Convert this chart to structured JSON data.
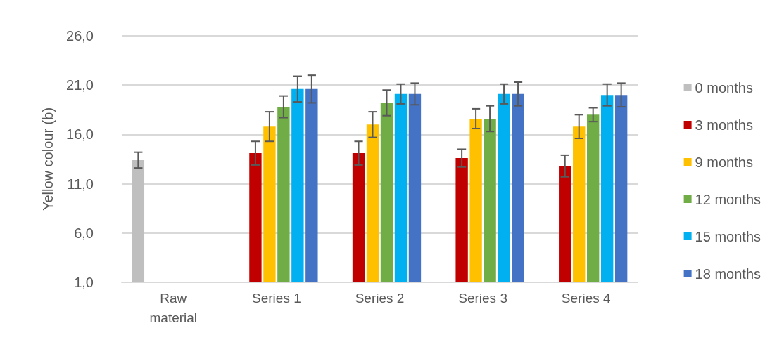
{
  "chart_data": {
    "type": "bar",
    "ylabel": "Yellow colour (b)",
    "categories": [
      "Raw\nmaterial",
      "Series 1",
      "Series 2",
      "Series 3",
      "Series 4"
    ],
    "series": [
      {
        "name": "0 months",
        "color": "#bfbfbf",
        "values": [
          13.4,
          null,
          null,
          null,
          null
        ],
        "errors": [
          0.8,
          null,
          null,
          null,
          null
        ]
      },
      {
        "name": "3 months",
        "color": "#c00000",
        "values": [
          null,
          14.1,
          14.1,
          13.6,
          12.8
        ],
        "errors": [
          null,
          1.2,
          1.2,
          0.9,
          1.1
        ]
      },
      {
        "name": "9 months",
        "color": "#ffc000",
        "values": [
          null,
          16.8,
          17.0,
          17.6,
          16.8
        ],
        "errors": [
          null,
          1.5,
          1.3,
          1.0,
          1.2
        ]
      },
      {
        "name": "12 months",
        "color": "#70ad47",
        "values": [
          null,
          18.8,
          19.2,
          17.6,
          18.0
        ],
        "errors": [
          null,
          1.1,
          1.3,
          1.3,
          0.7
        ]
      },
      {
        "name": "15 months",
        "color": "#00b0f0",
        "values": [
          null,
          20.6,
          20.1,
          20.1,
          20.0
        ],
        "errors": [
          null,
          1.3,
          1.0,
          1.0,
          1.1
        ]
      },
      {
        "name": "18 months",
        "color": "#4472c4",
        "values": [
          null,
          20.6,
          20.1,
          20.1,
          20.0
        ],
        "errors": [
          null,
          1.4,
          1.1,
          1.2,
          1.2
        ]
      }
    ],
    "ylim": [
      1,
      26
    ],
    "yticks": [
      {
        "value": 1,
        "label": "1,0"
      },
      {
        "value": 6,
        "label": "6,0"
      },
      {
        "value": 11,
        "label": "11,0"
      },
      {
        "value": 16,
        "label": "16,0"
      },
      {
        "value": 21,
        "label": "21,0"
      },
      {
        "value": 26,
        "label": "26,0"
      }
    ],
    "grid": "y",
    "legend": "right"
  }
}
